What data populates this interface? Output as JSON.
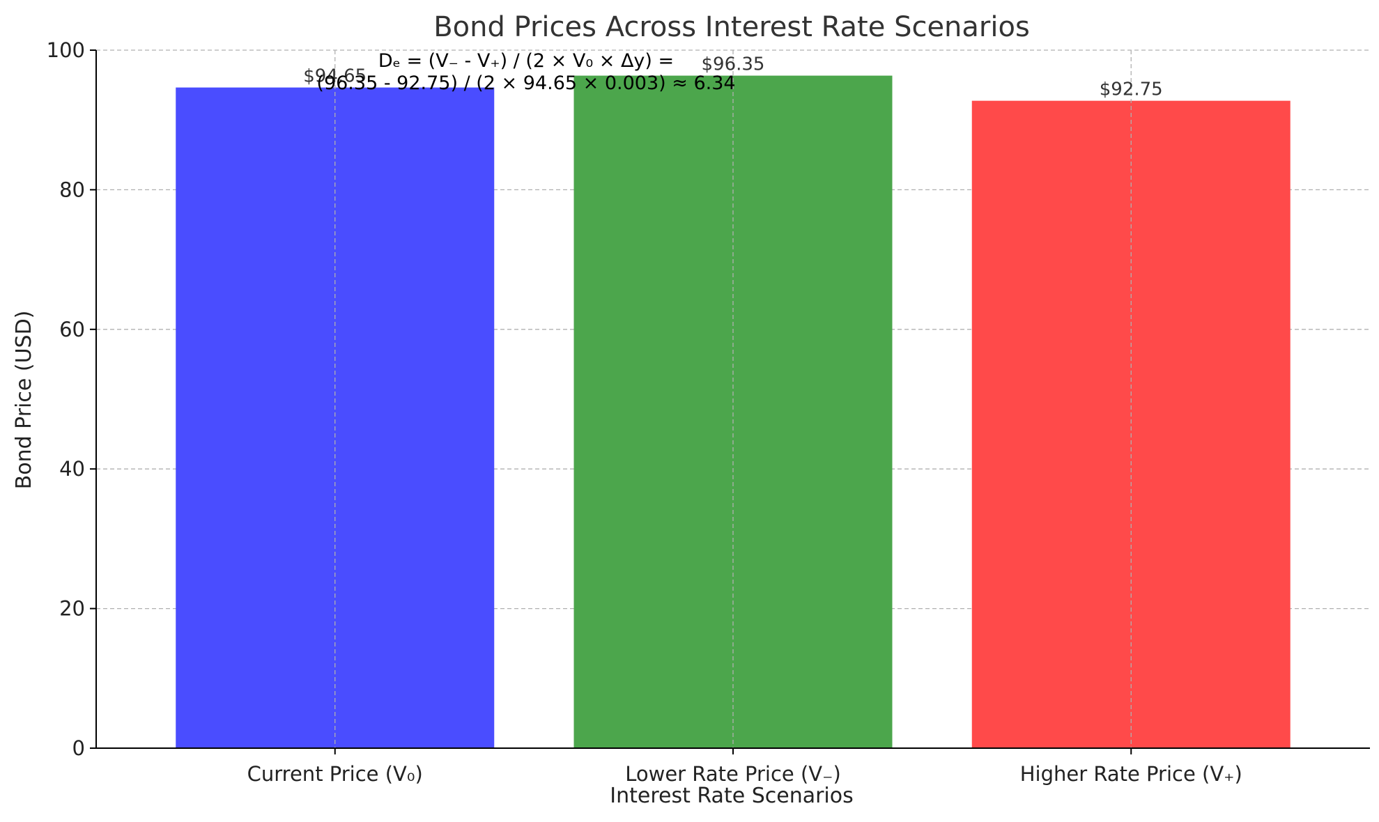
{
  "chart_data": {
    "type": "bar",
    "title": "Bond Prices Across Interest Rate Scenarios",
    "xlabel": "Interest Rate Scenarios",
    "ylabel": "Bond Price (USD)",
    "ylim": [
      0,
      100
    ],
    "yticks": [
      0,
      20,
      40,
      60,
      80,
      100
    ],
    "grid": true,
    "categories": [
      "Current Price (V₀)",
      "Lower Rate Price (V₋)",
      "Higher Rate Price (V₊)"
    ],
    "values": [
      94.65,
      96.35,
      92.75
    ],
    "value_labels": [
      "$94.65",
      "$96.35",
      "$92.75"
    ],
    "colors": [
      "#4a4dff",
      "#4ca64c",
      "#ff4a4a"
    ],
    "annotation": {
      "line1": "Dₑ = (V₋ - V₊) / (2 × V₀ × Δy) =",
      "line2": "(96.35 - 92.75) / (2 × 94.65 × 0.003) ≈ 6.34"
    }
  }
}
